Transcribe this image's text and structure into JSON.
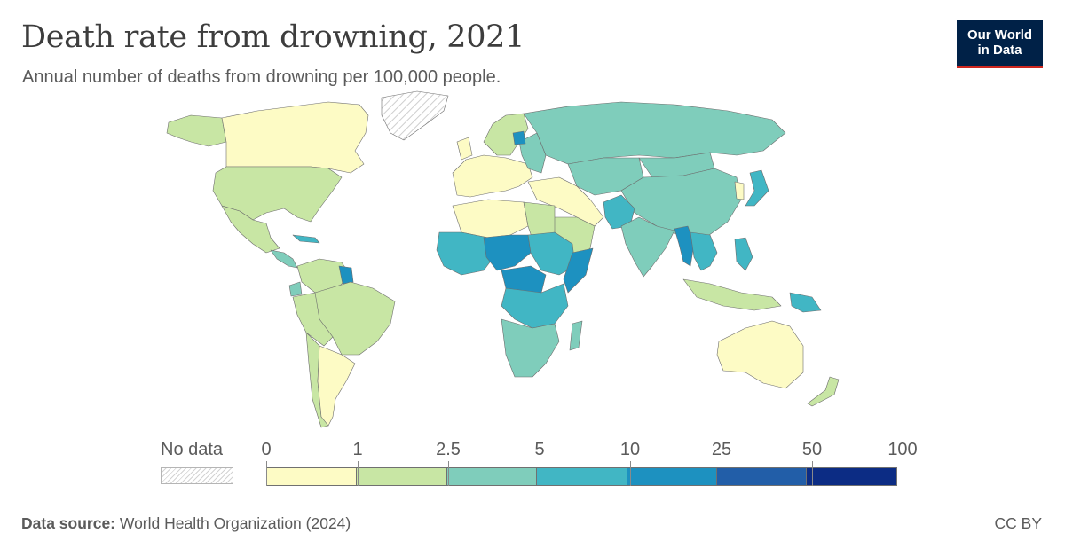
{
  "title": "Death rate from drowning, 2021",
  "subtitle": "Annual number of deaths from drowning per 100,000 people.",
  "logo": {
    "line1": "Our World",
    "line2": "in Data"
  },
  "legend": {
    "no_data_label": "No data",
    "ticks": [
      "0",
      "1",
      "2.5",
      "5",
      "10",
      "25",
      "50",
      "100"
    ],
    "colors": [
      "#fdfbc5",
      "#c8e6a4",
      "#7fcdbb",
      "#41b6c4",
      "#1d91c0",
      "#225ea8",
      "#0c2c84"
    ],
    "no_data_color": "#e0e0e0"
  },
  "footer": {
    "source_label": "Data source:",
    "source_text": " World Health Organization (2024)",
    "license": "CC BY"
  },
  "chart_data": {
    "type": "choropleth",
    "metric": "Annual number of deaths from drowning per 100,000 people",
    "year": 2021,
    "bins": [
      {
        "range": "0–1",
        "color": "#fdfbc5",
        "countries": [
          "Canada",
          "Argentina",
          "Uruguay",
          "Australia",
          "Western Europe",
          "Algeria",
          "Libya",
          "Turkey",
          "Iran",
          "Iraq",
          "South Korea"
        ]
      },
      {
        "range": "1–2.5",
        "color": "#c8e6a4",
        "countries": [
          "United States",
          "Brazil",
          "Chile",
          "Peru",
          "Colombia",
          "Egypt",
          "Saudi Arabia",
          "Morocco",
          "Scandinavia",
          "New Zealand",
          "Indonesia"
        ]
      },
      {
        "range": "2.5–5",
        "color": "#7fcdbb",
        "countries": [
          "Russia",
          "China",
          "India",
          "Mongolia",
          "Kazakhstan",
          "Angola",
          "Zambia",
          "South Africa",
          "Ecuador",
          "Guatemala"
        ]
      },
      {
        "range": "5–10",
        "color": "#41b6c4",
        "countries": [
          "DR Congo",
          "Sudan",
          "Tanzania",
          "Mali",
          "Japan",
          "Philippines",
          "Pakistan",
          "Papua New Guinea",
          "Madagascar"
        ]
      },
      {
        "range": "10–25",
        "color": "#1d91c0",
        "countries": [
          "Nigeria",
          "Chad",
          "Somalia",
          "Myanmar",
          "Guyana",
          "Central African Republic"
        ]
      },
      {
        "range": "25–50",
        "color": "#225ea8",
        "countries": []
      },
      {
        "range": "50–100",
        "color": "#0c2c84",
        "countries": []
      }
    ],
    "no_data": [
      "Greenland"
    ]
  }
}
